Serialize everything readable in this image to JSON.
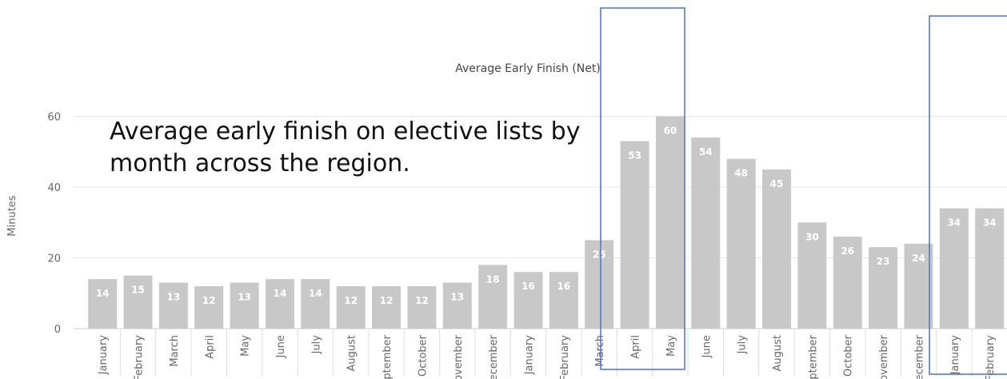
{
  "chart_data": {
    "type": "bar",
    "title": "Average Early Finish (Net)",
    "y_label": "Minutes",
    "annotation": "Average early finish on elective lists by month across the region.",
    "categories": [
      "January",
      "February",
      "March",
      "April",
      "May",
      "June",
      "July",
      "August",
      "September",
      "October",
      "November",
      "December",
      "January",
      "February",
      "March",
      "April",
      "May",
      "June",
      "July",
      "August",
      "September",
      "October",
      "November",
      "December",
      "January",
      "February"
    ],
    "values": [
      14,
      15,
      13,
      12,
      13,
      14,
      14,
      12,
      12,
      12,
      13,
      18,
      16,
      16,
      25,
      53,
      60,
      54,
      48,
      45,
      30,
      26,
      23,
      24,
      34,
      34
    ],
    "color": "#c8c8c8",
    "ylim": [
      0,
      70
    ],
    "yticks": [
      0,
      20,
      40,
      60
    ],
    "grid": true
  }
}
